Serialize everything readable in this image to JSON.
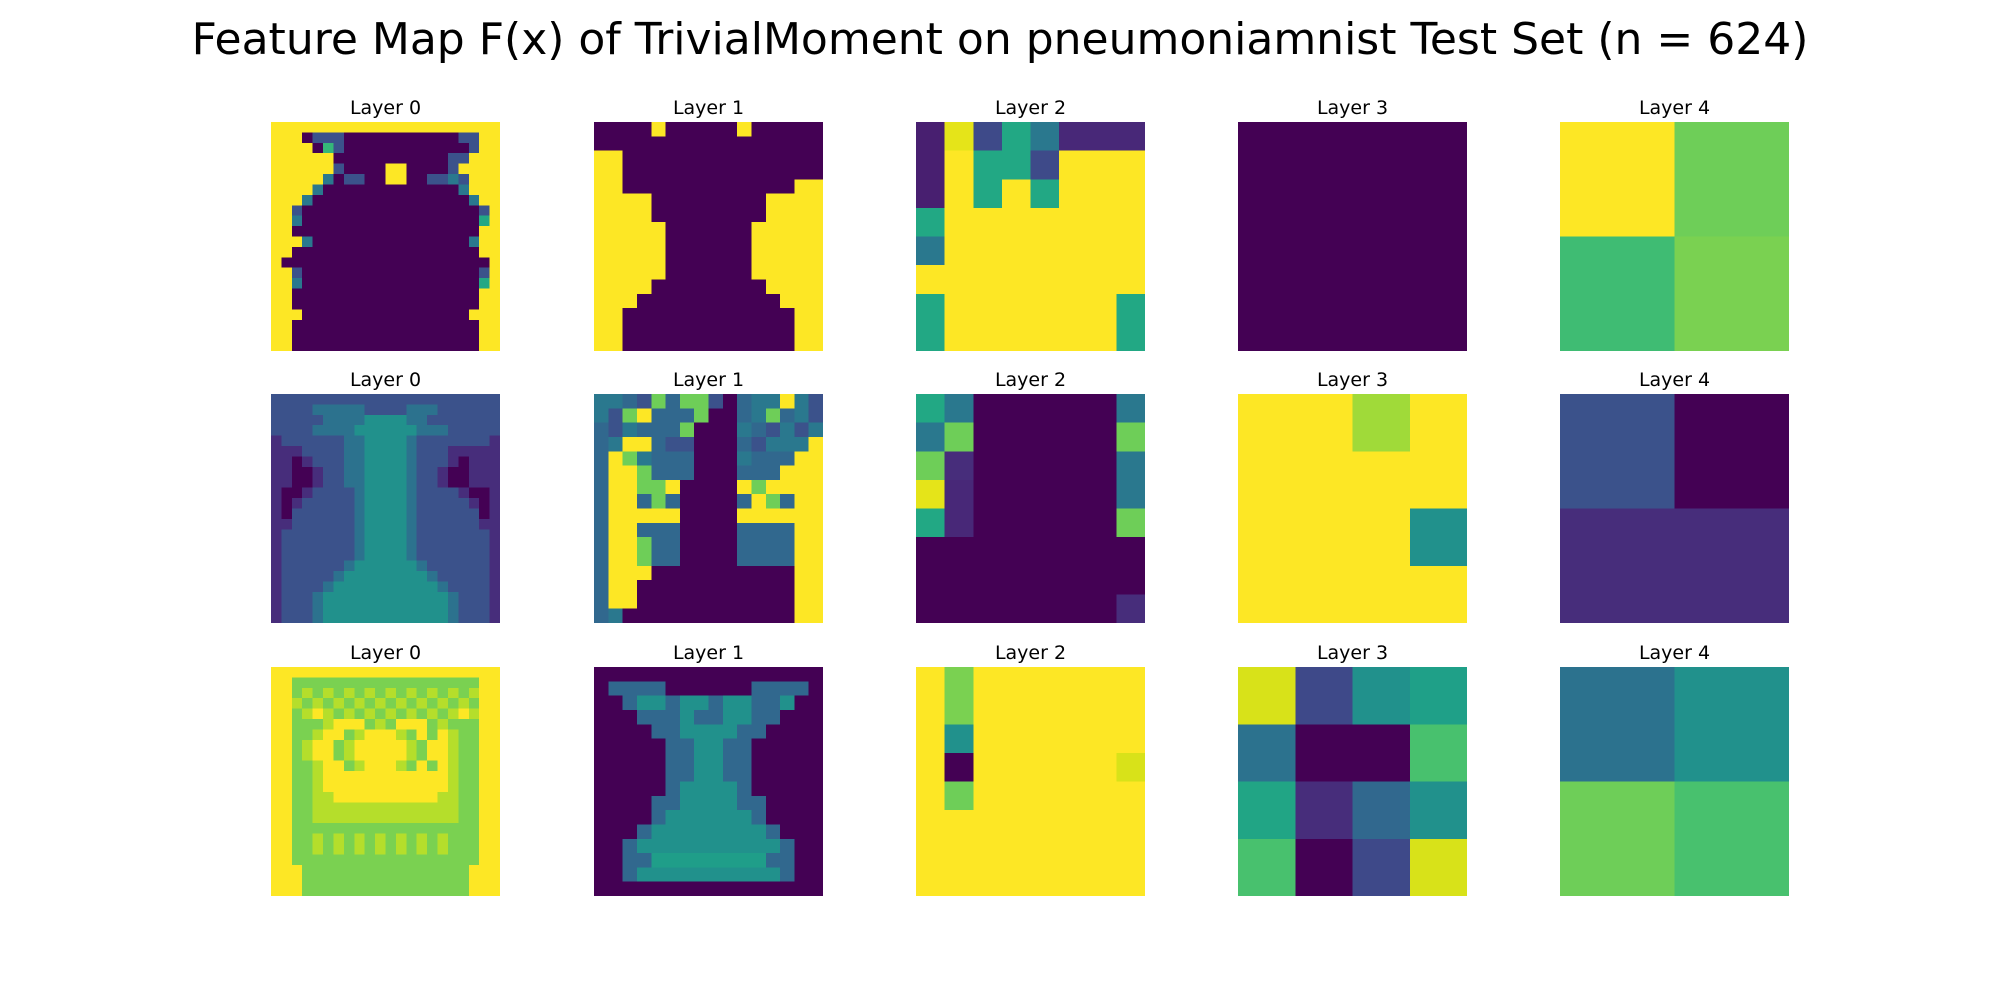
{
  "figure": {
    "title": "Feature Map F(x) of TrivialMoment on pneumoniamnist Test Set (n = 624)"
  },
  "colormap": {
    "name": "viridis",
    "stops": [
      "#440154",
      "#482878",
      "#3e4989",
      "#31688e",
      "#26828e",
      "#1f9e89",
      "#35b779",
      "#6ece58",
      "#b5de2b",
      "#fde725"
    ]
  },
  "chart_data": [
    {
      "type": "heatmap",
      "title": "Layer 0",
      "rows": [
        "1111111111111111111111",
        "1110444000000000004411",
        "1111084000000000000411",
        "1111110000000000044111",
        "1111114000011000041111",
        "1111120440011004424111",
        "1111200000000000002111",
        "1112000000000000000211",
        "1140000000000000000041",
        "1120000000000000000031",
        "1100000000000000000011",
        "1112000000000000000211",
        "1100000000000000000011",
        "1000000000000000000001",
        "1140000000000000000041",
        "1120000000000000000031",
        "1100000000000000000011",
        "1100000000000000000011",
        "1110000000000000000111",
        "1100000000000000000011",
        "1100000000000000000011",
        "1100000000000000000011"
      ],
      "code": "grid"
    },
    {
      "type": "heatmap",
      "title": "Layer 1",
      "rows": [
        "0000100000100000",
        "0000000000000000",
        "1100000000000000",
        "1100000000000000",
        "1100000000000011",
        "1111000000001111",
        "1111000000001111",
        "1111100000011111",
        "1111100000011111",
        "1111100000011111",
        "1111100000011111",
        "1111000000001111",
        "1110000000000111",
        "1100000000000011",
        "1100000000000011",
        "1100000000000011"
      ],
      "code": "grid"
    },
    {
      "type": "heatmap",
      "title": "Layer 2",
      "rows": [
        "09345666",
        "01443111",
        "01414111",
        "41111111",
        "51111111",
        "11111111",
        "41111114",
        "41111114"
      ],
      "code": "layer2a"
    },
    {
      "type": "heatmap",
      "title": "Layer 3",
      "rows": [
        "0000",
        "0000",
        "0000",
        "0000"
      ],
      "code": "grid"
    },
    {
      "type": "heatmap",
      "title": "Layer 4",
      "rows": [
        "10",
        "23"
      ],
      "code": "layer4a"
    },
    {
      "type": "heatmap",
      "title": "Layer 0",
      "rows": [
        "2222222222222222222222",
        "2222333332222333222222",
        "2222233334444332222222",
        "2222333344444433322222",
        "1222222334444322222221",
        "1112222334444322211111",
        "1101222334444322210111",
        "1100122334444322100111",
        "1100122334444322100111",
        "1001222234444322221001",
        "1012222234444322222101",
        "1022222234444322222201",
        "1122222234444322222211",
        "1222222234444322222221",
        "1222222234444322222221",
        "1222222234444322222221",
        "1222222344444432222221",
        "1222223444444443222221",
        "1222234444444444322221",
        "1222344444444444432221",
        "1222344444444444432221",
        "1222344444444444432221"
      ],
      "code": "layer0b"
    },
    {
      "type": "heatmap",
      "title": "Layer 1",
      "rows": [
        "2231434410322521",
        "2145333400324321",
        "3123334000231212",
        "3255311000312225",
        "3542333000233355",
        "3554333000333555",
        "3554450000545555",
        "3553430000354355",
        "3555550000555555",
        "3553330000333355",
        "3554330000333355",
        "3554330000333355",
        "3555000000000055",
        "3550000000000055",
        "3550000000000055",
        "3200000000000055"
      ],
      "code": "layer1b"
    },
    {
      "type": "heatmap",
      "title": "Layer 2",
      "rows": [
        "53000003",
        "34000004",
        "42000003",
        "61000003",
        "51000004",
        "00000000",
        "00000000",
        "00000002"
      ],
      "code": "layer2b"
    },
    {
      "type": "heatmap",
      "title": "Layer 3",
      "rows": [
        "1121",
        "1111",
        "1113",
        "1111"
      ],
      "code": "layer3b"
    },
    {
      "type": "heatmap",
      "title": "Layer 4",
      "rows": [
        "10",
        "22"
      ],
      "code": "layer4b"
    },
    {
      "type": "heatmap",
      "title": "Layer 0",
      "rows": [
        "1111111111111111111111",
        "1122222222222222222211",
        "1123232323232323232311",
        "1132323232323232323211",
        "1123132323232323231311",
        "1122231112321112322211",
        "1122311231113212132211",
        "1123112311111321132211",
        "1123112311111321132211",
        "1122311231113212132211",
        "1122311111111111132211",
        "1122311111111111132211",
        "1122331111111111332211",
        "1122333333333333332211",
        "1122333333333333332211",
        "1122222222222222222211",
        "1122323232323232322211",
        "1122323232323232322211",
        "1122222222222222222211",
        "1112222222222222222111",
        "1112222222222222222111",
        "1112222222222222222111"
      ],
      "code": "layer0c"
    },
    {
      "type": "heatmap",
      "title": "Layer 1",
      "rows": [
        "0000000000000000",
        "0111100000011110",
        "0012212212211200",
        "0001112112211000",
        "0000112222110000",
        "0000011221100000",
        "0000011221100000",
        "0000011221100000",
        "0000012222100000",
        "0000112222110000",
        "0000122222210000",
        "0001222222221000",
        "0012222222222100",
        "0011333333331100",
        "0012222222222100",
        "0000000000000000"
      ],
      "code": "layer1c"
    },
    {
      "type": "heatmap",
      "title": "Layer 2",
      "rows": [
        "14111111",
        "14111111",
        "12111111",
        "10111115",
        "13111111",
        "11111111",
        "11111111",
        "11111111"
      ],
      "code": "layer2c"
    },
    {
      "type": "heatmap",
      "title": "Layer 3",
      "rows": [
        "0123",
        "4556",
        "7892",
        "6510"
      ],
      "code": "layer3c"
    },
    {
      "type": "heatmap",
      "title": "Layer 4",
      "rows": [
        "01",
        "23"
      ],
      "code": "layer4c"
    }
  ]
}
